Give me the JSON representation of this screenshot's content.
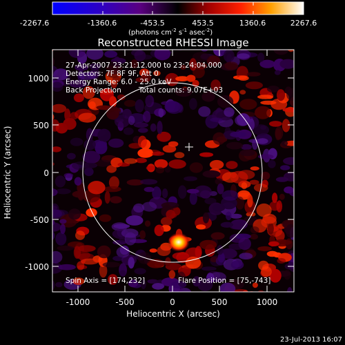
{
  "colorbar": {
    "ticks": [
      "-2267.6",
      "-1360.6",
      "-453.5",
      "453.5",
      "1360.6",
      "2267.6"
    ],
    "unit_main": "(photons cm",
    "unit_exp1": "-2",
    "unit_mid": " s",
    "unit_exp2": "-1",
    "unit_mid2": " asec",
    "unit_exp3": "-2",
    "unit_end": ")"
  },
  "title": "Reconstructed RHESSI Image",
  "info": {
    "line1": "27-Apr-2007 23:21:12.000 to 23:24:04.000",
    "line2": "Detectors: 7F 8F 9F, Att 0",
    "line3": "Energy Range: 6.0 - 25.0 keV",
    "line4a": "Back Projection",
    "line4b": "Total counts: 9.07E+03"
  },
  "footer_left": "Spin Axis = [174,232]",
  "footer_right": "Flare Position = [75,-743]",
  "x_axis": {
    "label": "Heliocentric X (arcsec)",
    "ticks": [
      "-1000",
      "-500",
      "0",
      "500",
      "1000"
    ]
  },
  "y_axis": {
    "label": "Heliocentric Y (arcsec)",
    "ticks": [
      "1000",
      "500",
      "0",
      "-500",
      "-1000"
    ]
  },
  "timestamp": "23-Jul-2013 16:07",
  "colors": {
    "background": "#000000",
    "text": "#ffffff"
  }
}
